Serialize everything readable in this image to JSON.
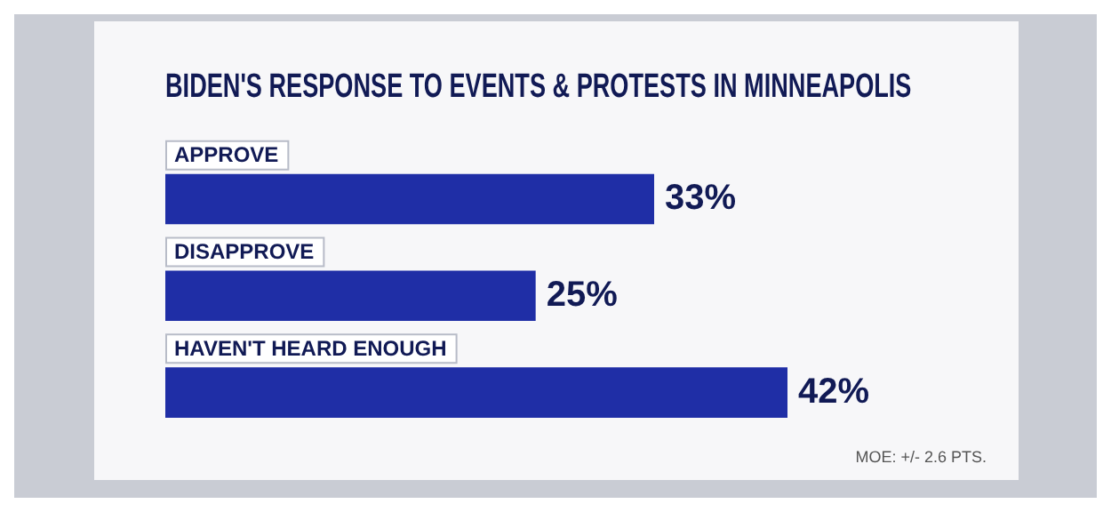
{
  "chart_data": {
    "type": "bar",
    "orientation": "horizontal",
    "title": "BIDEN'S RESPONSE TO EVENTS & PROTESTS IN MINNEAPOLIS",
    "categories": [
      "APPROVE",
      "DISAPPROVE",
      "HAVEN'T HEARD ENOUGH"
    ],
    "values": [
      33,
      25,
      42
    ],
    "value_labels": [
      "33%",
      "25%",
      "42%"
    ],
    "color": "#1f2ea6",
    "annotations": [
      "MOE: +/- 2.6 PTS."
    ],
    "legend": false
  }
}
